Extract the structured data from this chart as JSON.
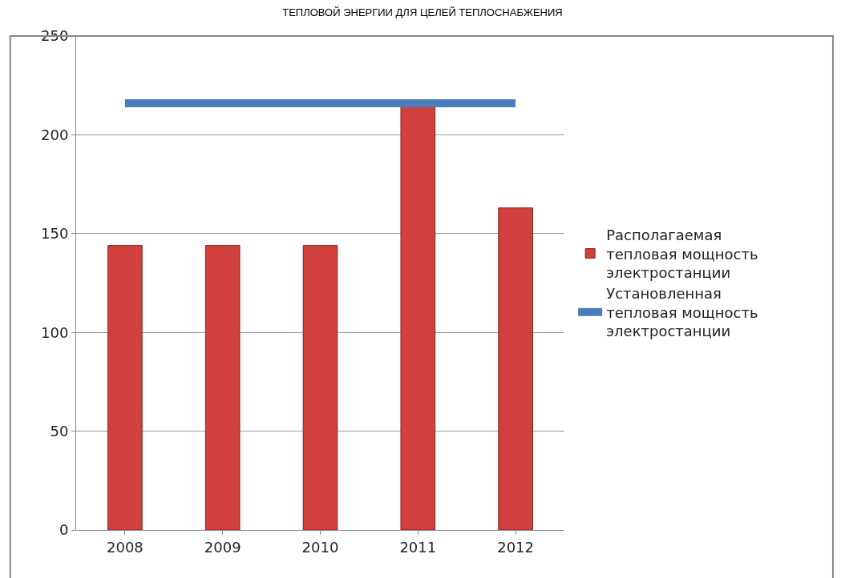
{
  "chart_data": {
    "type": "bar",
    "title": "ТЕПЛОВОЙ ЭНЕРГИИ ДЛЯ ЦЕЛЕЙ ТЕПЛОСНАБЖЕНИЯ",
    "categories": [
      "2008",
      "2009",
      "2010",
      "2011",
      "2012"
    ],
    "series": [
      {
        "name": "Располагаемая тепловая мощность электростанции",
        "color": "#d0403e",
        "values": [
          144,
          144,
          144,
          215,
          163
        ]
      },
      {
        "name": "Установленная тепловая мощность электростанции",
        "type": "line",
        "color": "#4a7ebb",
        "values": [
          216,
          216,
          216,
          216,
          216
        ]
      }
    ],
    "ylim": [
      0,
      250
    ],
    "yticks": [
      0,
      50,
      100,
      150,
      200,
      250
    ],
    "grid": "y",
    "legend": "right",
    "marker": "none",
    "line_style": "solid"
  }
}
